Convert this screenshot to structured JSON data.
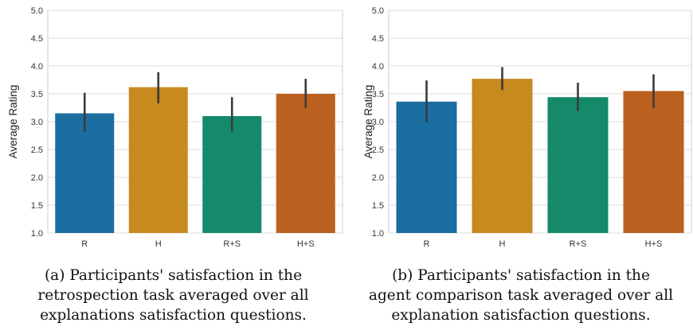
{
  "chart_data": [
    {
      "type": "bar",
      "categories": [
        "R",
        "H",
        "R+S",
        "H+S"
      ],
      "values": [
        3.15,
        3.62,
        3.1,
        3.5
      ],
      "error_low": [
        2.82,
        3.33,
        2.82,
        3.25
      ],
      "error_high": [
        3.52,
        3.89,
        3.44,
        3.77
      ],
      "bar_colors": [
        "#1a6ea0",
        "#c68a1f",
        "#148a6a",
        "#bb601e"
      ],
      "ylabel": "Average Rating",
      "xlabel": "",
      "ylim": [
        1.0,
        5.0
      ],
      "yticks": [
        "1.0",
        "1.5",
        "2.0",
        "2.5",
        "3.0",
        "3.5",
        "4.0",
        "4.5",
        "5.0"
      ],
      "grid": true,
      "caption": [
        "(a) Participants' satisfaction in the",
        "retrospection task averaged over all",
        "explanations satisfaction questions."
      ]
    },
    {
      "type": "bar",
      "categories": [
        "R",
        "H",
        "R+S",
        "H+S"
      ],
      "values": [
        3.36,
        3.77,
        3.44,
        3.55
      ],
      "error_low": [
        2.99,
        3.57,
        3.19,
        3.24
      ],
      "error_high": [
        3.74,
        3.98,
        3.7,
        3.85
      ],
      "bar_colors": [
        "#1a6ea0",
        "#c68a1f",
        "#148a6a",
        "#bb601e"
      ],
      "ylabel": "Average Rating",
      "xlabel": "",
      "ylim": [
        1.0,
        5.0
      ],
      "yticks": [
        "1.0",
        "1.5",
        "2.0",
        "2.5",
        "3.0",
        "3.5",
        "4.0",
        "4.5",
        "5.0"
      ],
      "grid": true,
      "caption": [
        "(b) Participants' satisfaction in the",
        "agent comparison task averaged over all",
        "explanation satisfaction questions."
      ]
    }
  ]
}
